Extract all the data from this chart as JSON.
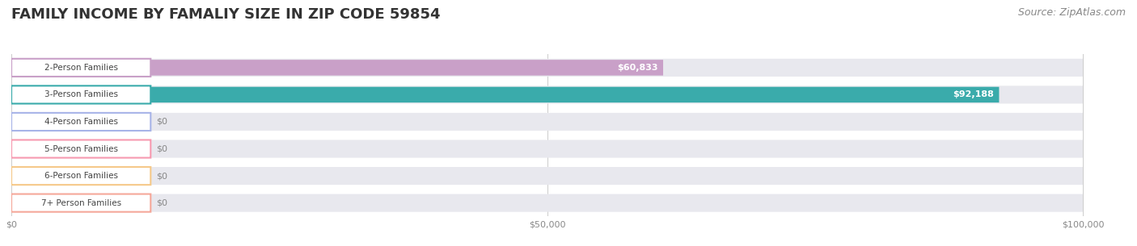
{
  "title": "FAMILY INCOME BY FAMALIY SIZE IN ZIP CODE 59854",
  "source": "Source: ZipAtlas.com",
  "categories": [
    "2-Person Families",
    "3-Person Families",
    "4-Person Families",
    "5-Person Families",
    "6-Person Families",
    "7+ Person Families"
  ],
  "values": [
    60833,
    92188,
    0,
    0,
    0,
    0
  ],
  "bar_colors": [
    "#c9a0c8",
    "#3aabab",
    "#a8b4e8",
    "#f79ab0",
    "#f5c98a",
    "#f5a89a"
  ],
  "xlim": [
    0,
    100000
  ],
  "xticks": [
    0,
    50000,
    100000
  ],
  "xtick_labels": [
    "$0",
    "$50,000",
    "$100,000"
  ],
  "bg_color": "#ffffff",
  "title_fontsize": 13,
  "source_fontsize": 9,
  "bar_height": 0.62,
  "figsize": [
    14.06,
    3.05
  ],
  "dpi": 100
}
